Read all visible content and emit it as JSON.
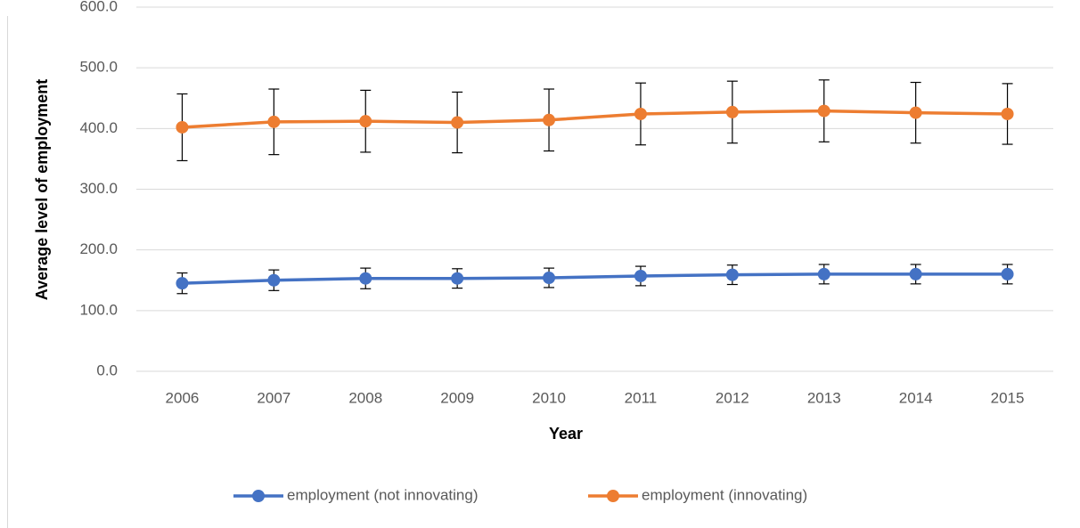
{
  "chart_data": {
    "type": "line",
    "x_label": "Year",
    "y_label": "Average level of employment",
    "categories": [
      "2006",
      "2007",
      "2008",
      "2009",
      "2010",
      "2011",
      "2012",
      "2013",
      "2014",
      "2015"
    ],
    "series": [
      {
        "name": "employment (not innovating)",
        "color": "#4472c4",
        "values": [
          145,
          150,
          153,
          153,
          154,
          157,
          159,
          160,
          160,
          160
        ],
        "errors": [
          17,
          17,
          17,
          16,
          16,
          16,
          16,
          16,
          16,
          16
        ]
      },
      {
        "name": "employment (innovating)",
        "color": "#ed7d31",
        "values": [
          402,
          411,
          412,
          410,
          414,
          424,
          427,
          429,
          426,
          424
        ],
        "errors": [
          55,
          54,
          51,
          50,
          51,
          51,
          51,
          51,
          50,
          50
        ]
      }
    ],
    "ylim": [
      0,
      600
    ],
    "yticks": [
      {
        "value": 0,
        "label": "0.0"
      },
      {
        "value": 100,
        "label": "100.0"
      },
      {
        "value": 200,
        "label": "200.0"
      },
      {
        "value": 300,
        "label": "300.0"
      },
      {
        "value": 400,
        "label": "400.0"
      },
      {
        "value": 500,
        "label": "500.0"
      },
      {
        "value": 600,
        "label": "600.0"
      }
    ],
    "grid": true,
    "legend": "bottom"
  }
}
